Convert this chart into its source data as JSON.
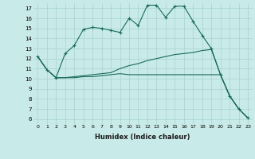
{
  "xlabel": "Humidex (Indice chaleur)",
  "background_color": "#c8eae8",
  "grid_color": "#a8d4d0",
  "line_color": "#1a6b5a",
  "xlim": [
    -0.5,
    23.5
  ],
  "ylim": [
    5.5,
    17.5
  ],
  "yticks": [
    6,
    7,
    8,
    9,
    10,
    11,
    12,
    13,
    14,
    15,
    16,
    17
  ],
  "xticks": [
    0,
    1,
    2,
    3,
    4,
    5,
    6,
    7,
    8,
    9,
    10,
    11,
    12,
    13,
    14,
    15,
    16,
    17,
    18,
    19,
    20,
    21,
    22,
    23
  ],
  "line1_x": [
    0,
    1,
    2,
    3,
    4,
    5,
    6,
    7,
    8,
    9,
    10,
    11,
    12,
    13,
    14,
    15,
    16,
    17,
    18,
    19,
    20,
    21,
    22,
    23
  ],
  "line1_y": [
    12.2,
    10.9,
    10.1,
    12.5,
    13.3,
    14.9,
    15.1,
    15.0,
    14.8,
    14.6,
    16.0,
    15.3,
    17.3,
    17.3,
    16.1,
    17.2,
    17.2,
    15.7,
    14.3,
    13.0,
    10.4,
    8.3,
    7.0,
    6.1
  ],
  "line2_x": [
    0,
    1,
    2,
    3,
    4,
    5,
    6,
    7,
    8,
    9,
    10,
    11,
    12,
    13,
    14,
    15,
    16,
    17,
    18,
    19,
    20,
    21,
    22,
    23
  ],
  "line2_y": [
    12.2,
    10.9,
    10.1,
    10.1,
    10.2,
    10.3,
    10.4,
    10.5,
    10.6,
    11.0,
    11.3,
    11.5,
    11.8,
    12.0,
    12.2,
    12.4,
    12.5,
    12.6,
    12.8,
    12.9,
    10.4,
    8.3,
    7.0,
    6.1
  ],
  "line3_x": [
    0,
    1,
    2,
    3,
    4,
    5,
    6,
    7,
    8,
    9,
    10,
    11,
    12,
    13,
    14,
    15,
    16,
    17,
    18,
    19,
    20,
    21,
    22,
    23
  ],
  "line3_y": [
    12.2,
    10.9,
    10.1,
    10.1,
    10.1,
    10.2,
    10.2,
    10.3,
    10.4,
    10.5,
    10.4,
    10.4,
    10.4,
    10.4,
    10.4,
    10.4,
    10.4,
    10.4,
    10.4,
    10.4,
    10.4,
    8.3,
    7.0,
    6.1
  ]
}
